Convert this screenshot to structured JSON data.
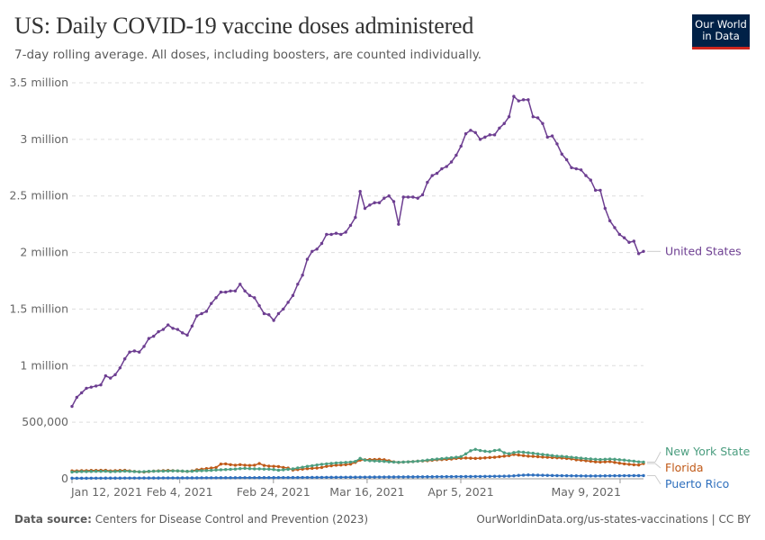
{
  "header": {
    "title": "US: Daily COVID-19 vaccine doses administered",
    "subtitle": "7-day rolling average. All doses, including boosters, are counted individually.",
    "logo_line1": "Our World",
    "logo_line2": "in Data"
  },
  "footer": {
    "source_label": "Data source:",
    "source_text": "Centers for Disease Control and Prevention (2023)",
    "link_text": "OurWorldinData.org/us-states-vaccinations | CC BY"
  },
  "colors": {
    "United States": "#6d3e91",
    "New York State": "#4c9e80",
    "Florida": "#c05917",
    "Puerto Rico": "#2e6fbd"
  },
  "chart_data": {
    "type": "line",
    "title": "US: Daily COVID-19 vaccine doses administered",
    "subtitle": "7-day rolling average. All doses, including boosters, are counted individually.",
    "x_start": "2021-01-12",
    "x_end": "2021-05-14",
    "x_tick_labels": [
      "Jan 12, 2021",
      "Feb 4, 2021",
      "Feb 24, 2021",
      "Mar 16, 2021",
      "Apr 5, 2021",
      "May 9, 2021"
    ],
    "x_tick_dates": [
      "2021-01-12",
      "2021-02-04",
      "2021-02-24",
      "2021-03-16",
      "2021-04-05",
      "2021-05-09"
    ],
    "y_ticks": [
      0,
      500000,
      1000000,
      1500000,
      2000000,
      2500000,
      3000000,
      3500000
    ],
    "y_tick_labels": [
      "0",
      "500,000",
      "1 million",
      "1.5 million",
      "2 million",
      "2.5 million",
      "3 million",
      "3.5 million"
    ],
    "ylim": [
      0,
      3500000
    ],
    "grid": true,
    "legend": "right-end labels",
    "series": [
      {
        "name": "United States",
        "values": [
          640000,
          720000,
          760000,
          800000,
          810000,
          820000,
          830000,
          910000,
          890000,
          920000,
          980000,
          1060000,
          1120000,
          1130000,
          1120000,
          1170000,
          1240000,
          1260000,
          1300000,
          1320000,
          1360000,
          1330000,
          1320000,
          1290000,
          1270000,
          1350000,
          1440000,
          1460000,
          1480000,
          1550000,
          1600000,
          1650000,
          1650000,
          1660000,
          1660000,
          1720000,
          1660000,
          1620000,
          1600000,
          1530000,
          1460000,
          1450000,
          1400000,
          1460000,
          1500000,
          1560000,
          1620000,
          1720000,
          1800000,
          1940000,
          2010000,
          2030000,
          2080000,
          2160000,
          2160000,
          2170000,
          2160000,
          2180000,
          2240000,
          2310000,
          2540000,
          2390000,
          2420000,
          2440000,
          2440000,
          2480000,
          2500000,
          2450000,
          2250000,
          2490000,
          2490000,
          2490000,
          2480000,
          2510000,
          2620000,
          2680000,
          2700000,
          2740000,
          2760000,
          2800000,
          2860000,
          2940000,
          3050000,
          3080000,
          3060000,
          3000000,
          3020000,
          3040000,
          3040000,
          3100000,
          3140000,
          3200000,
          3380000,
          3340000,
          3350000,
          3350000,
          3200000,
          3190000,
          3140000,
          3020000,
          3030000,
          2960000,
          2870000,
          2820000,
          2750000,
          2740000,
          2730000,
          2680000,
          2640000,
          2550000,
          2550000,
          2390000,
          2280000,
          2220000,
          2160000,
          2130000,
          2090000,
          2100000,
          1990000,
          2010000
        ]
      },
      {
        "name": "New York State",
        "values": [
          60000,
          62000,
          64000,
          64000,
          65000,
          66000,
          66000,
          67000,
          63000,
          65000,
          66000,
          68000,
          66000,
          64000,
          62000,
          63000,
          66000,
          67000,
          68000,
          68000,
          69000,
          70000,
          70000,
          68000,
          66000,
          67000,
          70000,
          72000,
          73000,
          75000,
          78000,
          80000,
          82000,
          84000,
          86000,
          90000,
          92000,
          90000,
          88000,
          88000,
          86000,
          85000,
          82000,
          76000,
          80000,
          84000,
          88000,
          96000,
          102000,
          110000,
          115000,
          122000,
          128000,
          132000,
          136000,
          140000,
          142000,
          145000,
          148000,
          154000,
          180000,
          165000,
          160000,
          158000,
          156000,
          154000,
          150000,
          148000,
          146000,
          148000,
          150000,
          152000,
          156000,
          160000,
          165000,
          170000,
          174000,
          178000,
          182000,
          186000,
          190000,
          196000,
          220000,
          248000,
          260000,
          250000,
          244000,
          240000,
          250000,
          255000,
          230000,
          222000,
          232000,
          238000,
          235000,
          230000,
          226000,
          220000,
          215000,
          210000,
          205000,
          200000,
          198000,
          195000,
          190000,
          186000,
          182000,
          178000,
          175000,
          172000,
          170000,
          172000,
          174000,
          172000,
          168000,
          165000,
          160000,
          156000,
          150000,
          148000
        ]
      },
      {
        "name": "Florida",
        "values": [
          70000,
          70000,
          72000,
          72000,
          74000,
          74000,
          75000,
          75000,
          70000,
          72000,
          74000,
          75000,
          70000,
          65000,
          62000,
          60000,
          64000,
          68000,
          70000,
          72000,
          74000,
          72000,
          70000,
          68000,
          65000,
          70000,
          80000,
          85000,
          90000,
          95000,
          100000,
          130000,
          132000,
          125000,
          120000,
          125000,
          120000,
          118000,
          120000,
          135000,
          118000,
          112000,
          110000,
          108000,
          100000,
          95000,
          78000,
          82000,
          86000,
          90000,
          92000,
          95000,
          100000,
          110000,
          115000,
          120000,
          122000,
          125000,
          130000,
          145000,
          165000,
          168000,
          170000,
          170000,
          172000,
          168000,
          160000,
          150000,
          145000,
          148000,
          150000,
          152000,
          156000,
          158000,
          160000,
          164000,
          168000,
          170000,
          172000,
          175000,
          180000,
          182000,
          184000,
          182000,
          180000,
          182000,
          185000,
          188000,
          190000,
          195000,
          200000,
          205000,
          215000,
          210000,
          205000,
          200000,
          198000,
          195000,
          192000,
          190000,
          188000,
          186000,
          184000,
          180000,
          176000,
          168000,
          165000,
          160000,
          155000,
          150000,
          148000,
          150000,
          152000,
          145000,
          138000,
          132000,
          128000,
          124000,
          122000,
          135000
        ]
      },
      {
        "name": "Puerto Rico",
        "values": [
          5000,
          5000,
          5000,
          5000,
          5500,
          5500,
          5500,
          6000,
          6000,
          6000,
          6000,
          6500,
          6500,
          6500,
          6500,
          7000,
          7000,
          7000,
          7000,
          7500,
          7500,
          7500,
          7500,
          8000,
          8000,
          8000,
          8000,
          8500,
          8500,
          8500,
          8500,
          9000,
          9000,
          9000,
          9000,
          9500,
          9500,
          9500,
          9500,
          10000,
          10000,
          10000,
          10000,
          10500,
          10500,
          10500,
          11000,
          11000,
          11500,
          11500,
          12000,
          12000,
          12500,
          12500,
          13000,
          13000,
          13500,
          13500,
          14000,
          14000,
          14500,
          14500,
          15000,
          15000,
          15500,
          15500,
          16000,
          16000,
          16500,
          16500,
          17000,
          17000,
          17500,
          17500,
          18000,
          18000,
          18500,
          18500,
          19000,
          19000,
          19500,
          19500,
          20000,
          20000,
          20500,
          20500,
          21000,
          21500,
          22000,
          22500,
          23000,
          24000,
          26000,
          30000,
          32000,
          34000,
          33000,
          32000,
          31000,
          30000,
          29000,
          28000,
          27500,
          27000,
          26500,
          26000,
          25500,
          25000,
          25000,
          25000,
          25500,
          26000,
          26500,
          27000,
          27000,
          27500,
          27500,
          28000,
          28000,
          28000
        ]
      }
    ]
  }
}
